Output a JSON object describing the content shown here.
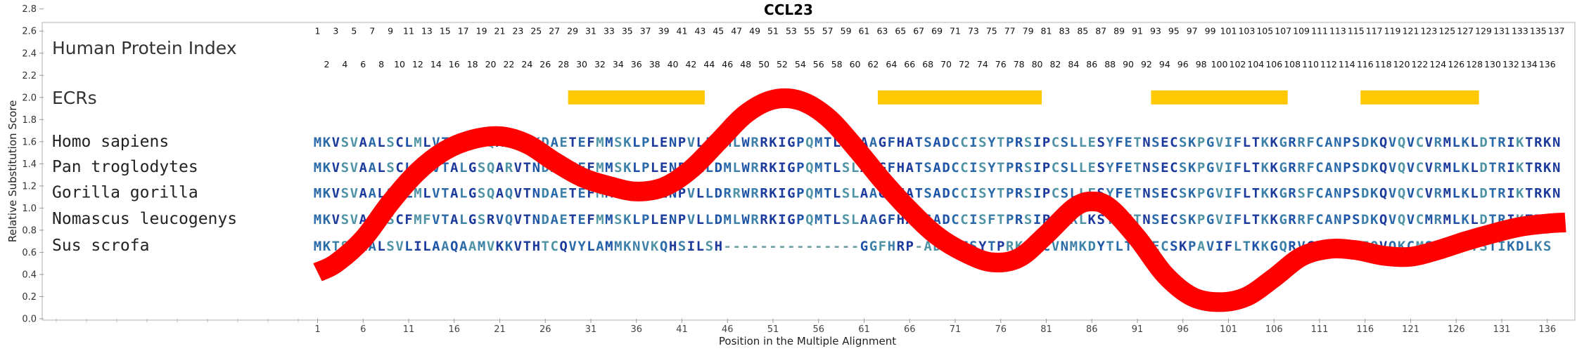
{
  "chart_data": {
    "type": "line",
    "title": "CCL23",
    "xlabel": "Position in the Multiple Alignment",
    "ylabel": "Relative Substitution Score",
    "xlim": [
      1,
      138
    ],
    "ylim": [
      0.0,
      2.8
    ],
    "yticks": [
      "0.0",
      "0.2",
      "0.4",
      "0.6",
      "0.8",
      "1.0",
      "1.2",
      "1.4",
      "1.6",
      "1.8",
      "2.0",
      "2.2",
      "2.4",
      "2.6",
      "2.8"
    ],
    "xticks": [
      "1",
      "6",
      "11",
      "16",
      "21",
      "26",
      "31",
      "36",
      "41",
      "46",
      "51",
      "56",
      "61",
      "66",
      "71",
      "76",
      "81",
      "86",
      "91",
      "96",
      "101",
      "106",
      "111",
      "116",
      "121",
      "126",
      "131",
      "136"
    ],
    "hpi_label": "Human Protein Index",
    "hpi_row1": [
      "1",
      "3",
      "5",
      "7",
      "9",
      "11",
      "13",
      "15",
      "17",
      "19",
      "21",
      "23",
      "25",
      "27",
      "29",
      "31",
      "33",
      "35",
      "37",
      "39",
      "41",
      "43",
      "45",
      "47",
      "49",
      "51",
      "53",
      "55",
      "57",
      "59",
      "61",
      "63",
      "65",
      "67",
      "69",
      "71",
      "73",
      "75",
      "77",
      "79",
      "81",
      "83",
      "85",
      "87",
      "89",
      "91",
      "93",
      "95",
      "97",
      "99",
      "101",
      "103",
      "105",
      "107",
      "109",
      "111",
      "113",
      "115",
      "117",
      "119",
      "121",
      "123",
      "125",
      "127",
      "129",
      "131",
      "133",
      "135",
      "137"
    ],
    "hpi_row2": [
      "2",
      "4",
      "6",
      "8",
      "10",
      "12",
      "14",
      "16",
      "18",
      "20",
      "22",
      "24",
      "26",
      "28",
      "30",
      "32",
      "34",
      "36",
      "38",
      "40",
      "42",
      "44",
      "46",
      "48",
      "50",
      "52",
      "54",
      "56",
      "58",
      "60",
      "62",
      "64",
      "66",
      "68",
      "70",
      "72",
      "74",
      "76",
      "78",
      "80",
      "82",
      "84",
      "86",
      "88",
      "90",
      "92",
      "94",
      "96",
      "98",
      "100",
      "102",
      "104",
      "106",
      "108",
      "110",
      "112",
      "114",
      "116",
      "118",
      "120",
      "122",
      "124",
      "126",
      "128",
      "130",
      "132",
      "134",
      "136"
    ],
    "ecr_label": "ECRs",
    "ecr_y": 2.0,
    "ecr_color": "#ffc800",
    "ecr_ranges": [
      [
        28.5,
        43.5
      ],
      [
        62.5,
        80.5
      ],
      [
        92.5,
        107.5
      ],
      [
        115.5,
        128.5
      ]
    ],
    "series": [
      {
        "color": "#ff0000",
        "x": [
          1,
          3,
          6,
          9,
          12,
          15,
          18,
          21,
          24,
          27,
          30,
          33,
          36,
          39,
          42,
          45,
          48,
          51,
          54,
          57,
          60,
          63,
          66,
          69,
          72,
          75,
          78,
          81,
          84,
          86,
          88,
          91,
          94,
          97,
          100,
          103,
          106,
          109,
          112,
          115,
          118,
          121,
          124,
          127,
          130,
          133,
          136,
          138
        ],
        "y": [
          0.42,
          0.5,
          0.72,
          1.05,
          1.33,
          1.52,
          1.62,
          1.65,
          1.58,
          1.42,
          1.28,
          1.2,
          1.15,
          1.19,
          1.35,
          1.6,
          1.85,
          1.98,
          1.97,
          1.82,
          1.55,
          1.25,
          0.98,
          0.75,
          0.6,
          0.51,
          0.55,
          0.76,
          1.0,
          1.06,
          1.0,
          0.73,
          0.4,
          0.2,
          0.15,
          0.2,
          0.37,
          0.56,
          0.63,
          0.62,
          0.57,
          0.56,
          0.62,
          0.7,
          0.77,
          0.83,
          0.86,
          0.87
        ]
      }
    ],
    "sequences": [
      {
        "name": "Homo sapiens",
        "y": 1.6,
        "seq": "MKVSVAALSCLMLVTALGSQARVTKDAETEFMMSKLPLENPVLLDMLWRRKIGPQMTLSHAAGFHATSADCCISYTPRSIPCSLLESYFETNSECSKPGVIFLTKKGRRFCANPSDKQVQVCVRMLKLDTRIKTRKN"
      },
      {
        "name": "Pan troglodytes",
        "y": 1.37,
        "seq": "MKVSVAALSCLMLVTALGSQARVTNDAETEFMMSKLPLENPVLLDMLWRRKIGPQMTLSLAAGFHATSADCCISYTPRSIPCSLLESYFETNSECSKPGVIFLTKKGRRFCANPSDKQVQVCVRMLKLDTRIKTRKN"
      },
      {
        "name": "Gorilla gorilla",
        "y": 1.14,
        "seq": "MKVSVAALSCLMLVTALGSQAQVTNDAETEFMMSKLPLENPVLLDRRWRRKIGPQMTLSLAAGFHATSADCCISYTPRSIPCSLLESYFETNSECSKPGVIFLTKKGRSFCANPSDKQVQVCVRMLKLDTRIKTRKN"
      },
      {
        "name": "Nomascus leucogenys",
        "y": 0.9,
        "seq": "MKVSVASLSCFMFVTALGSRVQVTNDAETEFMMSKLPLENPVLLDMLWRRKIGPQMTLSLAAGFHATSADCCISFTPRSIPCSRLKSYFETNSECSKPGVIFLTKKGRRFCANPSDKQVQVCMRMLKLDTRIKTRKN"
      },
      {
        "name": "Sus scrofa",
        "y": 0.66,
        "seq": "MKTSIAALSVLILAAQAAMVKKVTHTCQVYLAMMKNVKQHSILSH---------------GGFHRP-ADCCFSYTPRKIQCVNMKDYTLTTSECSKPAVIFLTKKGQRVCTNPDDEQVQKCMSELKLTSTIKDLKS"
      }
    ]
  }
}
